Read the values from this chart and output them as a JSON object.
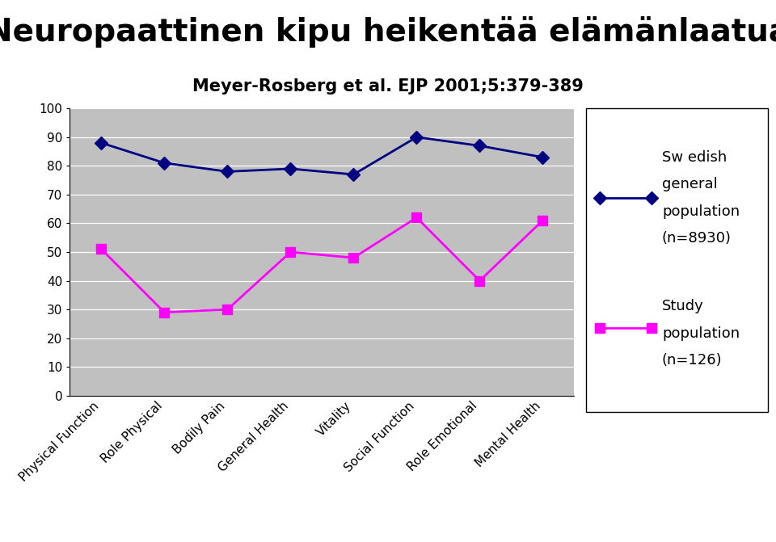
{
  "title": "Neuropaattinen kipu heikentää elämänlaatua",
  "subtitle": "Meyer-Rosberg et al. EJP 2001;5:379-389",
  "categories": [
    "Physical Function",
    "Role Physical",
    "Bodily Pain",
    "General Health",
    "Vitality",
    "Social Function",
    "Role Emotional",
    "Mental Health"
  ],
  "swedish_population": [
    88,
    81,
    78,
    79,
    77,
    90,
    87,
    83
  ],
  "study_population": [
    51,
    29,
    30,
    50,
    48,
    62,
    40,
    61
  ],
  "swedish_color": "#000080",
  "study_color": "#FF00FF",
  "background_color": "#C0C0C0",
  "ylim": [
    0,
    100
  ],
  "yticks": [
    0,
    10,
    20,
    30,
    40,
    50,
    60,
    70,
    80,
    90,
    100
  ],
  "legend_swedish_line1": "Sw edish",
  "legend_swedish_line2": "general",
  "legend_swedish_line3": "population",
  "legend_swedish_line4": "(n=8930)",
  "legend_study_line1": "Study",
  "legend_study_line2": "population",
  "legend_study_line3": "(n=126)",
  "title_fontsize": 28,
  "subtitle_fontsize": 15,
  "tick_fontsize": 11,
  "legend_fontsize": 13
}
